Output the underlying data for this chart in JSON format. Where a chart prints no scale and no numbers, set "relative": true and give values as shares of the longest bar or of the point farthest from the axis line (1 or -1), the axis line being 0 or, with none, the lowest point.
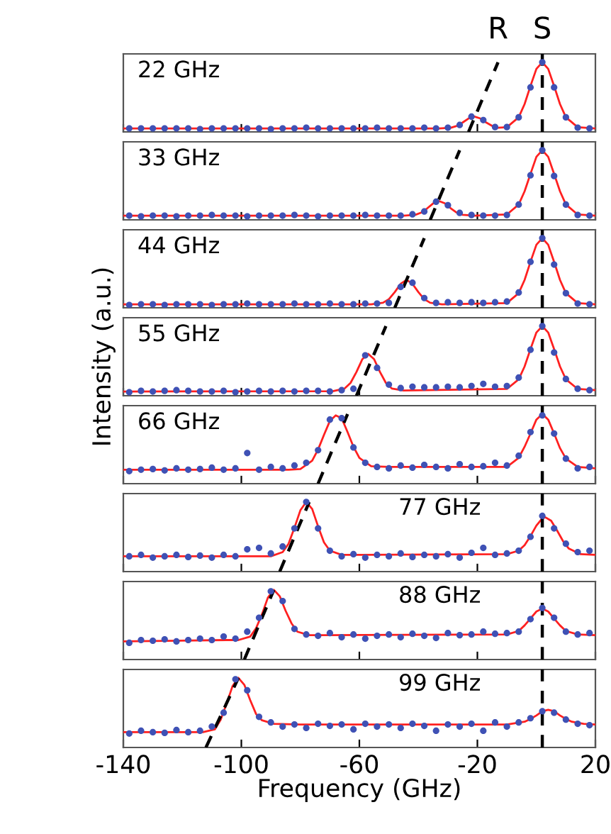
{
  "chart_data": [
    {
      "type": "scatter",
      "title": "22 GHz",
      "relative": true,
      "xlim": [
        -140,
        20
      ],
      "xticks": [
        -140,
        -100,
        -60,
        -20,
        20
      ],
      "tick_labels": false,
      "annotations": [
        "R",
        "S"
      ],
      "ref_lines": [
        {
          "axis": "x",
          "value": 2,
          "color": "#000000",
          "line_style": "dashed"
        }
      ],
      "x": [
        -138,
        -134,
        -130,
        -126,
        -122,
        -118,
        -114,
        -110,
        -106,
        -102,
        -98,
        -94,
        -90,
        -86,
        -82,
        -78,
        -74,
        -70,
        -66,
        -62,
        -58,
        -54,
        -50,
        -46,
        -42,
        -38,
        -34,
        -30,
        -26,
        -22,
        -18,
        -14,
        -10,
        -6,
        -2,
        2,
        6,
        10,
        14,
        18
      ],
      "series": [
        {
          "marker": "circle",
          "color": "#3f51b5",
          "values": [
            0.05,
            0.05,
            0.05,
            0.05,
            0.05,
            0.05,
            0.04,
            0.05,
            0.05,
            0.05,
            0.05,
            0.05,
            0.04,
            0.05,
            0.05,
            0.06,
            0.05,
            0.05,
            0.05,
            0.05,
            0.05,
            0.06,
            0.05,
            0.05,
            0.05,
            0.06,
            0.05,
            0.06,
            0.1,
            0.22,
            0.17,
            0.07,
            0.07,
            0.21,
            0.64,
            1.0,
            0.64,
            0.21,
            0.06,
            0.05
          ]
        },
        {
          "type": "line",
          "color": "#ff2020",
          "x": [
            -140,
            -33,
            -29,
            -27,
            -25,
            -23,
            -21,
            -19,
            -17,
            -15,
            -13,
            -10,
            -6,
            -4,
            -2,
            0,
            2,
            4,
            6,
            8,
            10,
            14,
            20
          ],
          "values": [
            0.05,
            0.05,
            0.06,
            0.086,
            0.135,
            0.193,
            0.22,
            0.193,
            0.135,
            0.086,
            0.06,
            0.067,
            0.21,
            0.4,
            0.66,
            0.905,
            1.0,
            0.905,
            0.66,
            0.4,
            0.21,
            0.067,
            0.05
          ]
        },
        {
          "type": "line",
          "color": "#000000",
          "line_style": "dashed",
          "x": [
            -23,
            -13
          ],
          "values": [
            0,
            1
          ]
        }
      ]
    },
    {
      "type": "scatter",
      "title": "33 GHz",
      "relative": true,
      "xlim": [
        -140,
        20
      ],
      "xticks": [
        -140,
        -100,
        -60,
        -20,
        20
      ],
      "tick_labels": false,
      "ref_lines": [
        {
          "axis": "x",
          "value": 2,
          "color": "#000000",
          "line_style": "dashed"
        }
      ],
      "x": [
        -138,
        -134,
        -130,
        -126,
        -122,
        -118,
        -114,
        -110,
        -106,
        -102,
        -98,
        -94,
        -90,
        -86,
        -82,
        -78,
        -74,
        -70,
        -66,
        -62,
        -58,
        -54,
        -50,
        -46,
        -42,
        -38,
        -34,
        -30,
        -26,
        -22,
        -18,
        -14,
        -10,
        -6,
        -2,
        2,
        6,
        10,
        14,
        18
      ],
      "series": [
        {
          "marker": "circle",
          "color": "#3f51b5",
          "values": [
            0.06,
            0.05,
            0.06,
            0.06,
            0.05,
            0.06,
            0.06,
            0.07,
            0.06,
            0.06,
            0.05,
            0.06,
            0.06,
            0.06,
            0.07,
            0.06,
            0.05,
            0.06,
            0.06,
            0.06,
            0.07,
            0.06,
            0.06,
            0.06,
            0.08,
            0.12,
            0.26,
            0.21,
            0.1,
            0.07,
            0.06,
            0.06,
            0.07,
            0.22,
            0.64,
            1.0,
            0.63,
            0.22,
            0.07,
            0.06
          ]
        },
        {
          "type": "line",
          "color": "#ff2020",
          "x": [
            -140,
            -45,
            -41,
            -39,
            -37,
            -35,
            -33,
            -31,
            -29,
            -27,
            -25,
            -21,
            -10,
            -6,
            -4,
            -2,
            0,
            2,
            4,
            6,
            8,
            10,
            14,
            20
          ],
          "values": [
            0.06,
            0.06,
            0.073,
            0.104,
            0.165,
            0.236,
            0.27,
            0.236,
            0.165,
            0.104,
            0.073,
            0.06,
            0.077,
            0.22,
            0.41,
            0.66,
            0.905,
            1.0,
            0.905,
            0.66,
            0.41,
            0.22,
            0.077,
            0.06
          ]
        },
        {
          "type": "line",
          "color": "#000000",
          "line_style": "dashed",
          "x": [
            -36,
            -26
          ],
          "values": [
            0,
            1
          ]
        }
      ]
    },
    {
      "type": "scatter",
      "title": "44 GHz",
      "relative": true,
      "xlim": [
        -140,
        20
      ],
      "xticks": [
        -140,
        -100,
        -60,
        -20,
        20
      ],
      "tick_labels": false,
      "ref_lines": [
        {
          "axis": "x",
          "value": 2,
          "color": "#000000",
          "line_style": "dashed"
        }
      ],
      "x": [
        -138,
        -134,
        -130,
        -126,
        -122,
        -118,
        -114,
        -110,
        -106,
        -102,
        -98,
        -94,
        -90,
        -86,
        -82,
        -78,
        -74,
        -70,
        -66,
        -62,
        -58,
        -54,
        -50,
        -46,
        -42,
        -38,
        -34,
        -30,
        -26,
        -22,
        -18,
        -14,
        -10,
        -6,
        -2,
        2,
        6,
        10,
        14,
        18
      ],
      "series": [
        {
          "marker": "circle",
          "color": "#3f51b5",
          "values": [
            0.04,
            0.05,
            0.05,
            0.04,
            0.05,
            0.05,
            0.05,
            0.04,
            0.05,
            0.05,
            0.06,
            0.05,
            0.05,
            0.05,
            0.06,
            0.05,
            0.05,
            0.06,
            0.05,
            0.05,
            0.06,
            0.06,
            0.07,
            0.3,
            0.36,
            0.14,
            0.07,
            0.08,
            0.07,
            0.08,
            0.07,
            0.08,
            0.09,
            0.22,
            0.66,
            1.0,
            0.62,
            0.21,
            0.06,
            0.05
          ]
        },
        {
          "type": "line",
          "color": "#ff2020",
          "x": [
            -140,
            -56,
            -52,
            -50,
            -48,
            -46,
            -44,
            -42,
            -40,
            -38,
            -36,
            -32,
            -10,
            -6,
            -4,
            -2,
            0,
            2,
            4,
            6,
            8,
            10,
            14,
            20
          ],
          "values": [
            0.05,
            0.05,
            0.072,
            0.124,
            0.225,
            0.344,
            0.4,
            0.344,
            0.225,
            0.124,
            0.072,
            0.05,
            0.067,
            0.21,
            0.4,
            0.66,
            0.905,
            1.0,
            0.905,
            0.66,
            0.4,
            0.21,
            0.067,
            0.05
          ]
        },
        {
          "type": "line",
          "color": "#000000",
          "line_style": "dashed",
          "x": [
            -48,
            -38
          ],
          "values": [
            0,
            1
          ]
        }
      ]
    },
    {
      "type": "scatter",
      "title": "55 GHz",
      "ylabel": "Intensity (a.u.)",
      "relative": true,
      "xlim": [
        -140,
        20
      ],
      "xticks": [
        -140,
        -100,
        -60,
        -20,
        20
      ],
      "tick_labels": false,
      "ref_lines": [
        {
          "axis": "x",
          "value": 2,
          "color": "#000000",
          "line_style": "dashed"
        }
      ],
      "x": [
        -138,
        -134,
        -130,
        -126,
        -122,
        -118,
        -114,
        -110,
        -106,
        -102,
        -98,
        -94,
        -90,
        -86,
        -82,
        -78,
        -74,
        -70,
        -66,
        -62,
        -58,
        -54,
        -50,
        -46,
        -42,
        -38,
        -34,
        -30,
        -26,
        -22,
        -18,
        -14,
        -10,
        -6,
        -2,
        2,
        6,
        10,
        14,
        18
      ],
      "series": [
        {
          "marker": "circle",
          "color": "#3f51b5",
          "values": [
            0.05,
            0.07,
            0.06,
            0.07,
            0.08,
            0.07,
            0.06,
            0.06,
            0.07,
            0.05,
            0.06,
            0.07,
            0.06,
            0.07,
            0.06,
            0.07,
            0.07,
            0.06,
            0.08,
            0.1,
            0.58,
            0.4,
            0.16,
            0.11,
            0.13,
            0.12,
            0.12,
            0.13,
            0.12,
            0.14,
            0.17,
            0.13,
            0.14,
            0.26,
            0.66,
            1.0,
            0.62,
            0.24,
            0.1,
            0.08
          ]
        },
        {
          "type": "line",
          "color": "#ff2020",
          "x": [
            -140,
            -69,
            -65,
            -63,
            -61,
            -59,
            -57,
            -55,
            -53,
            -51,
            -49,
            -45,
            -10,
            -6,
            -4,
            -2,
            0,
            2,
            4,
            6,
            8,
            10,
            14,
            20
          ],
          "values": [
            0.06,
            0.065,
            0.104,
            0.183,
            0.34,
            0.524,
            0.6,
            0.524,
            0.34,
            0.183,
            0.104,
            0.075,
            0.097,
            0.236,
            0.42,
            0.67,
            0.908,
            1.0,
            0.908,
            0.67,
            0.42,
            0.236,
            0.097,
            0.08
          ]
        },
        {
          "type": "line",
          "color": "#000000",
          "line_style": "dashed",
          "x": [
            -61,
            -51
          ],
          "values": [
            0,
            1
          ]
        }
      ]
    },
    {
      "type": "scatter",
      "title": "66 GHz",
      "relative": true,
      "xlim": [
        -140,
        20
      ],
      "xticks": [
        -140,
        -100,
        -60,
        -20,
        20
      ],
      "tick_labels": false,
      "ref_lines": [
        {
          "axis": "x",
          "value": 2,
          "color": "#000000",
          "line_style": "dashed"
        }
      ],
      "x": [
        -138,
        -134,
        -130,
        -126,
        -122,
        -118,
        -114,
        -110,
        -106,
        -102,
        -98,
        -94,
        -90,
        -86,
        -82,
        -78,
        -74,
        -70,
        -66,
        -62,
        -58,
        -54,
        -50,
        -46,
        -42,
        -38,
        -34,
        -30,
        -26,
        -22,
        -18,
        -14,
        -10,
        -6,
        -2,
        2,
        6,
        10,
        14,
        18
      ],
      "series": [
        {
          "marker": "circle",
          "color": "#3f51b5",
          "values": [
            0.18,
            0.2,
            0.21,
            0.19,
            0.22,
            0.2,
            0.21,
            0.23,
            0.2,
            0.22,
            0.44,
            0.2,
            0.24,
            0.22,
            0.26,
            0.3,
            0.48,
            0.92,
            0.94,
            0.52,
            0.3,
            0.24,
            0.22,
            0.26,
            0.23,
            0.27,
            0.24,
            0.22,
            0.28,
            0.24,
            0.25,
            0.3,
            0.26,
            0.4,
            0.74,
            0.98,
            0.72,
            0.36,
            0.22,
            0.24
          ]
        },
        {
          "type": "line",
          "color": "#ff2020",
          "x": [
            -140,
            -84,
            -80,
            -76,
            -74,
            -72,
            -70,
            -68,
            -66,
            -64,
            -62,
            -60,
            -56,
            -50,
            -10,
            -6,
            -4,
            -2,
            0,
            2,
            4,
            6,
            8,
            10,
            14,
            20
          ],
          "values": [
            0.2,
            0.2,
            0.21,
            0.33,
            0.49,
            0.7,
            0.9,
            0.98,
            0.94,
            0.74,
            0.53,
            0.37,
            0.25,
            0.24,
            0.24,
            0.37,
            0.53,
            0.72,
            0.92,
            1.0,
            0.92,
            0.72,
            0.51,
            0.36,
            0.24,
            0.22
          ]
        },
        {
          "type": "line",
          "color": "#000000",
          "line_style": "dashed",
          "x": [
            -74,
            -64
          ],
          "values": [
            0,
            1
          ]
        }
      ]
    },
    {
      "type": "scatter",
      "title": "77 GHz",
      "relative": true,
      "xlim": [
        -140,
        20
      ],
      "xticks": [
        -140,
        -100,
        -60,
        -20,
        20
      ],
      "tick_labels": false,
      "ref_lines": [
        {
          "axis": "x",
          "value": 2,
          "color": "#000000",
          "line_style": "dashed"
        }
      ],
      "x": [
        -138,
        -134,
        -130,
        -126,
        -122,
        -118,
        -114,
        -110,
        -106,
        -102,
        -98,
        -94,
        -90,
        -86,
        -82,
        -78,
        -74,
        -70,
        -66,
        -62,
        -58,
        -54,
        -50,
        -46,
        -42,
        -38,
        -34,
        -30,
        -26,
        -22,
        -18,
        -14,
        -10,
        -6,
        -2,
        2,
        6,
        10,
        14,
        18
      ],
      "series": [
        {
          "marker": "circle",
          "color": "#3f51b5",
          "values": [
            0.22,
            0.24,
            0.2,
            0.22,
            0.24,
            0.21,
            0.23,
            0.2,
            0.24,
            0.22,
            0.32,
            0.34,
            0.26,
            0.36,
            0.62,
            1.0,
            0.62,
            0.3,
            0.22,
            0.25,
            0.2,
            0.24,
            0.22,
            0.26,
            0.21,
            0.24,
            0.22,
            0.25,
            0.2,
            0.27,
            0.34,
            0.24,
            0.26,
            0.3,
            0.5,
            0.8,
            0.62,
            0.4,
            0.28,
            0.3
          ]
        },
        {
          "type": "line",
          "color": "#ff2020",
          "x": [
            -140,
            -94,
            -90,
            -86,
            -84,
            -82,
            -80,
            -78,
            -76,
            -74,
            -72,
            -70,
            -66,
            -60,
            -10,
            -6,
            -4,
            -2,
            0,
            2,
            3,
            5,
            7,
            9,
            11,
            15,
            20
          ],
          "values": [
            0.22,
            0.22,
            0.22,
            0.28,
            0.4,
            0.63,
            0.88,
            1.0,
            0.9,
            0.65,
            0.42,
            0.3,
            0.24,
            0.24,
            0.25,
            0.3,
            0.38,
            0.51,
            0.66,
            0.765,
            0.78,
            0.73,
            0.59,
            0.44,
            0.33,
            0.25,
            0.24
          ]
        },
        {
          "type": "line",
          "color": "#000000",
          "line_style": "dashed",
          "x": [
            -87,
            -77
          ],
          "values": [
            0,
            1
          ]
        }
      ]
    },
    {
      "type": "scatter",
      "title": "88 GHz",
      "relative": true,
      "xlim": [
        -140,
        20
      ],
      "xticks": [
        -140,
        -100,
        -60,
        -20,
        20
      ],
      "tick_labels": false,
      "ref_lines": [
        {
          "axis": "x",
          "value": 2,
          "color": "#000000",
          "line_style": "dashed"
        }
      ],
      "x": [
        -138,
        -134,
        -130,
        -126,
        -122,
        -118,
        -114,
        -110,
        -106,
        -102,
        -98,
        -94,
        -90,
        -86,
        -82,
        -78,
        -74,
        -70,
        -66,
        -62,
        -58,
        -54,
        -50,
        -46,
        -42,
        -38,
        -34,
        -30,
        -26,
        -22,
        -18,
        -14,
        -10,
        -6,
        -2,
        2,
        6,
        10,
        14,
        18
      ],
      "series": [
        {
          "marker": "circle",
          "color": "#3f51b5",
          "values": [
            0.24,
            0.28,
            0.27,
            0.29,
            0.26,
            0.28,
            0.3,
            0.28,
            0.33,
            0.3,
            0.4,
            0.6,
            0.98,
            0.84,
            0.44,
            0.36,
            0.34,
            0.38,
            0.32,
            0.36,
            0.3,
            0.34,
            0.36,
            0.32,
            0.37,
            0.34,
            0.31,
            0.38,
            0.35,
            0.36,
            0.4,
            0.37,
            0.38,
            0.4,
            0.58,
            0.74,
            0.6,
            0.4,
            0.36,
            0.38
          ]
        },
        {
          "type": "line",
          "color": "#ff2020",
          "x": [
            -140,
            -105,
            -101,
            -97,
            -95,
            -93,
            -91,
            -89,
            -87,
            -85,
            -83,
            -81,
            -77,
            -70,
            -10,
            -6,
            -4,
            -2,
            0,
            2,
            4,
            6,
            8,
            10,
            14,
            20
          ],
          "values": [
            0.26,
            0.28,
            0.28,
            0.33,
            0.45,
            0.65,
            0.89,
            1.0,
            0.91,
            0.7,
            0.52,
            0.4,
            0.35,
            0.35,
            0.36,
            0.41,
            0.49,
            0.59,
            0.69,
            0.73,
            0.69,
            0.59,
            0.49,
            0.41,
            0.36,
            0.35
          ]
        },
        {
          "type": "line",
          "color": "#000000",
          "line_style": "dashed",
          "x": [
            -99,
            -89
          ],
          "values": [
            0,
            1
          ]
        }
      ]
    },
    {
      "type": "scatter",
      "title": "99 GHz",
      "xlabel": "Frequency (GHz)",
      "relative": true,
      "xlim": [
        -140,
        20
      ],
      "xticks": [
        -140,
        -100,
        -60,
        -20,
        20
      ],
      "tick_labels": "x",
      "ref_lines": [
        {
          "axis": "x",
          "value": 2,
          "color": "#000000",
          "line_style": "dashed"
        }
      ],
      "x": [
        -138,
        -134,
        -130,
        -126,
        -122,
        -118,
        -114,
        -110,
        -106,
        -102,
        -98,
        -94,
        -90,
        -86,
        -82,
        -78,
        -74,
        -70,
        -66,
        -62,
        -58,
        -54,
        -50,
        -46,
        -42,
        -38,
        -34,
        -30,
        -26,
        -22,
        -18,
        -14,
        -10,
        -6,
        -2,
        2,
        6,
        10,
        14,
        18
      ],
      "series": [
        {
          "marker": "circle",
          "color": "#3f51b5",
          "values": [
            0.2,
            0.24,
            0.22,
            0.21,
            0.25,
            0.22,
            0.24,
            0.3,
            0.5,
            0.98,
            0.82,
            0.44,
            0.36,
            0.3,
            0.33,
            0.28,
            0.34,
            0.31,
            0.33,
            0.26,
            0.34,
            0.3,
            0.33,
            0.28,
            0.34,
            0.31,
            0.24,
            0.33,
            0.3,
            0.34,
            0.24,
            0.36,
            0.3,
            0.36,
            0.42,
            0.52,
            0.5,
            0.4,
            0.34,
            0.32
          ]
        },
        {
          "type": "line",
          "color": "#ff2020",
          "x": [
            -140,
            -117,
            -113,
            -109,
            -107,
            -105,
            -103,
            -101,
            -99,
            -97,
            -95,
            -93,
            -89,
            -80,
            -10,
            -4,
            -2,
            0,
            2,
            4,
            6,
            8,
            10,
            12,
            16,
            20
          ],
          "values": [
            0.22,
            0.22,
            0.22,
            0.26,
            0.4,
            0.63,
            0.88,
            1.0,
            0.9,
            0.68,
            0.48,
            0.39,
            0.34,
            0.33,
            0.33,
            0.37,
            0.41,
            0.46,
            0.52,
            0.54,
            0.52,
            0.46,
            0.41,
            0.37,
            0.34,
            0.33
          ]
        },
        {
          "type": "line",
          "color": "#000000",
          "line_style": "dashed",
          "x": [
            -112,
            -101
          ],
          "values": [
            0,
            1
          ]
        }
      ]
    }
  ]
}
